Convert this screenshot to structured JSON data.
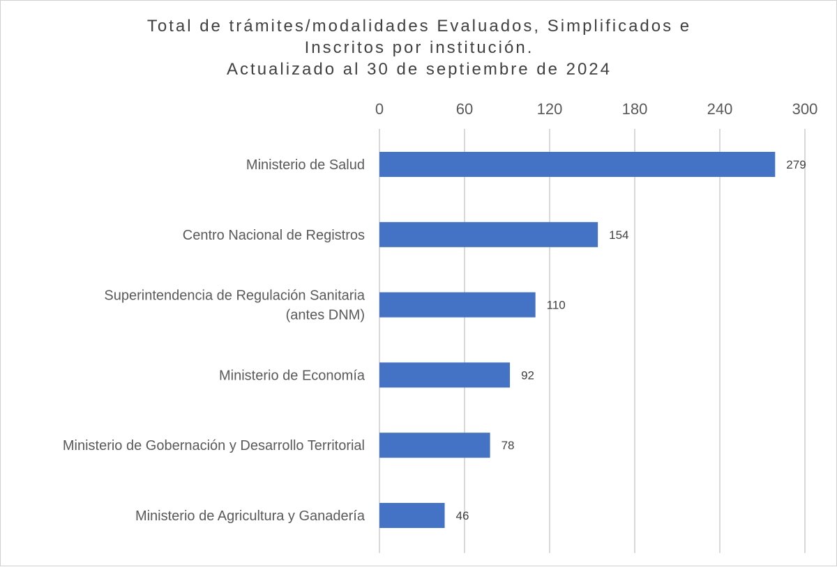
{
  "chart_data": {
    "type": "bar",
    "orientation": "horizontal",
    "title_lines": [
      "Total de trámites/modalidades Evaluados, Simplificados e",
      "Inscritos por institución.",
      "Actualizado al 30 de septiembre de 2024"
    ],
    "categories": [
      [
        "Ministerio de Salud"
      ],
      [
        "Centro Nacional de Registros"
      ],
      [
        "Superintendencia de Regulación Sanitaria",
        "(antes DNM)"
      ],
      [
        "Ministerio de Economía"
      ],
      [
        "Ministerio de Gobernación y Desarrollo Territorial"
      ],
      [
        "Ministerio de Agricultura y Ganadería"
      ]
    ],
    "values": [
      279,
      154,
      110,
      92,
      78,
      46
    ],
    "xlim": [
      0,
      300
    ],
    "xticks": [
      0,
      60,
      120,
      180,
      240,
      300
    ],
    "x_axis_position": "top",
    "grid": true,
    "legend": "none",
    "bar_color": "#4472c4",
    "grid_color": "#d9d9d9"
  }
}
